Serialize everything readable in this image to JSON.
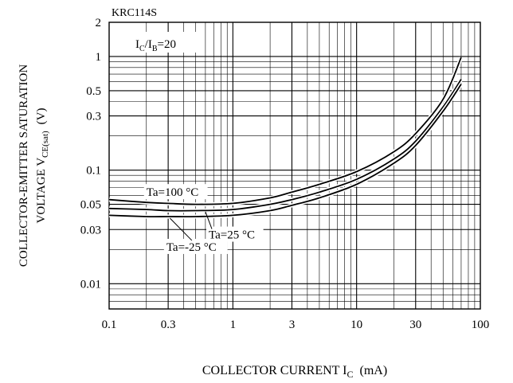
{
  "chart_data": {
    "type": "line",
    "title": "KRC114S",
    "condition": {
      "main": "I",
      "sub1": "C",
      "mid": "/I",
      "sub2": "B",
      "tail": "=20"
    },
    "xlabel": {
      "main": "COLLECTOR CURRENT I",
      "sub": "C",
      "unit": "(mA)"
    },
    "ylabel": {
      "line1": "COLLECTOR-EMITTER SATURATION",
      "line2_main": "VOLTAGE V",
      "line2_sub": "CE(sat)",
      "line2_unit": "(V)"
    },
    "x_scale": "log",
    "y_scale": "log",
    "xlim": [
      0.1,
      100
    ],
    "ylim": [
      0.006,
      2
    ],
    "grid": true,
    "x_ticks": [
      0.1,
      0.3,
      1,
      3,
      10,
      30,
      100
    ],
    "x_tick_labels": [
      "0.1",
      "0.3",
      "1",
      "3",
      "10",
      "30",
      "100"
    ],
    "y_ticks": [
      2,
      1,
      0.5,
      0.3,
      0.1,
      0.05,
      0.03,
      0.01
    ],
    "y_tick_labels": [
      "2",
      "1",
      "0.5",
      "0.3",
      "0.1",
      "0.05",
      "0.03",
      "0.01"
    ],
    "series": [
      {
        "name": "Ta=100 °C",
        "x": [
          0.1,
          0.2,
          0.3,
          0.5,
          1,
          2,
          3,
          5,
          10,
          20,
          30,
          50,
          70
        ],
        "y": [
          0.055,
          0.052,
          0.051,
          0.05,
          0.051,
          0.057,
          0.064,
          0.075,
          0.097,
          0.145,
          0.21,
          0.42,
          0.98
        ]
      },
      {
        "name": "Ta=25 °C",
        "x": [
          0.1,
          0.2,
          0.3,
          0.5,
          1,
          2,
          3,
          5,
          10,
          20,
          30,
          50,
          70
        ],
        "y": [
          0.046,
          0.045,
          0.044,
          0.044,
          0.045,
          0.05,
          0.055,
          0.064,
          0.083,
          0.125,
          0.18,
          0.36,
          0.63
        ]
      },
      {
        "name": "Ta=-25 °C",
        "x": [
          0.1,
          0.2,
          0.3,
          0.5,
          1,
          2,
          3,
          5,
          10,
          20,
          30,
          50,
          70
        ],
        "y": [
          0.04,
          0.039,
          0.039,
          0.039,
          0.04,
          0.044,
          0.049,
          0.057,
          0.075,
          0.115,
          0.165,
          0.33,
          0.57
        ]
      }
    ],
    "annotations": [
      {
        "series": 0,
        "text": "Ta=100 °C"
      },
      {
        "series": 1,
        "text": "Ta=25 °C"
      },
      {
        "series": 2,
        "text": "Ta=-25 °C"
      }
    ]
  }
}
